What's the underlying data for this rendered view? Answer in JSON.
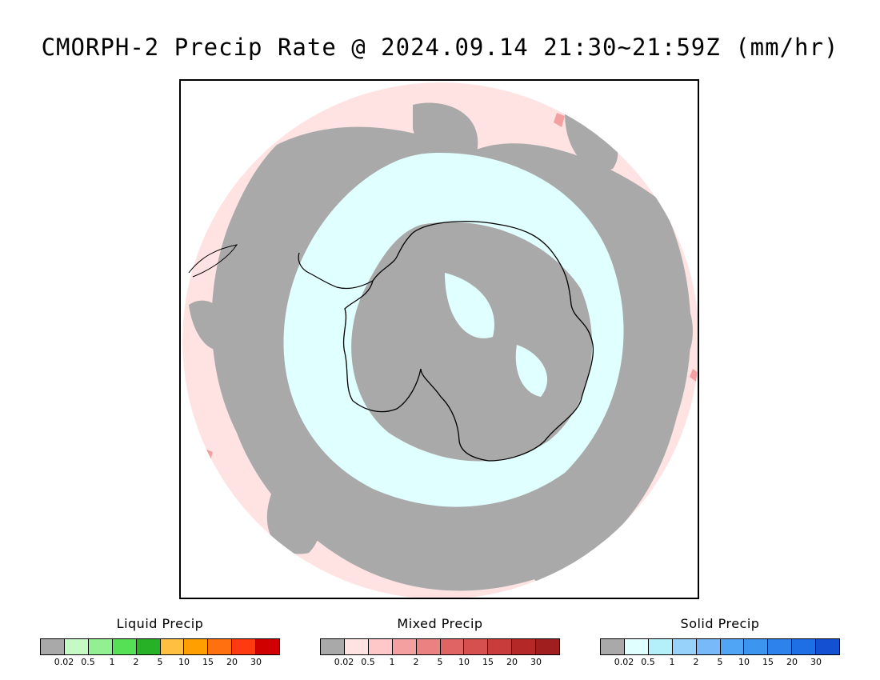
{
  "title": "CMORPH-2 Precip Rate @ 2024.09.14 21:30~21:59Z (mm/hr)",
  "map": {
    "projection": "south-polar-stereographic",
    "colors": {
      "no_precip": "#a9a9a9",
      "mixed_light": "#ffe3e3",
      "solid_light": "#e0ffff",
      "mixed_moderate": "#f4a0a0",
      "coastline": "#000000",
      "background": "#ffffff"
    }
  },
  "legends": [
    {
      "title": "Liquid Precip",
      "colors": [
        "#a9a9a9",
        "#c5fac5",
        "#92f092",
        "#55e055",
        "#26b126",
        "#ffbf40",
        "#ffa000",
        "#ff7010",
        "#ff3a10",
        "#d00000"
      ],
      "ticks": [
        "0.02",
        "0.5",
        "1",
        "2",
        "5",
        "10",
        "15",
        "20",
        "30"
      ]
    },
    {
      "title": "Mixed Precip",
      "colors": [
        "#a9a9a9",
        "#ffe3e3",
        "#ffc8c8",
        "#f4a0a0",
        "#eb8282",
        "#e06464",
        "#d65050",
        "#c83c3c",
        "#b42828",
        "#a01e1e"
      ],
      "ticks": [
        "0.02",
        "0.5",
        "1",
        "2",
        "5",
        "10",
        "15",
        "20",
        "30"
      ]
    },
    {
      "title": "Solid Precip",
      "colors": [
        "#a9a9a9",
        "#e0ffff",
        "#b4f0fa",
        "#96d2fa",
        "#78b9fa",
        "#50a5f5",
        "#3c96f0",
        "#2d82eb",
        "#1e6ee6",
        "#1450d2"
      ],
      "ticks": [
        "0.02",
        "0.5",
        "1",
        "2",
        "5",
        "10",
        "15",
        "20",
        "30"
      ]
    }
  ]
}
